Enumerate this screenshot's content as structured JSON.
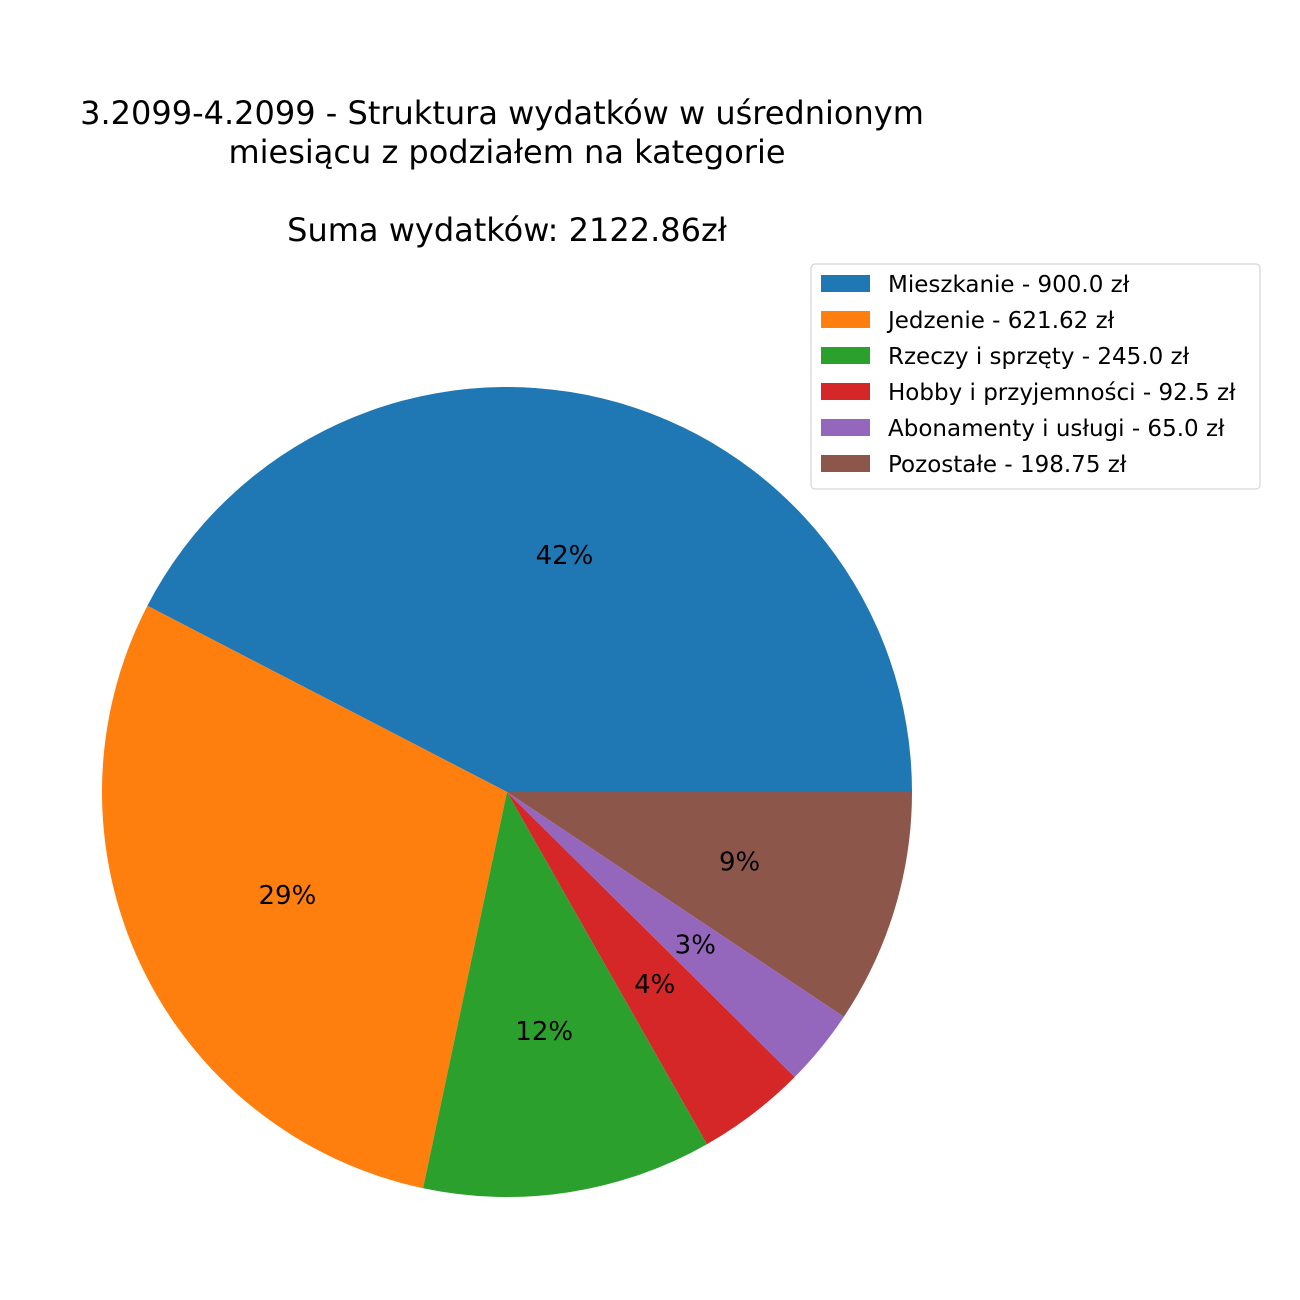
{
  "chart_data": {
    "type": "pie",
    "title_lines": [
      "3.2099-4.2099 - Struktura wydatków w uśrednionym",
      "miesiącu z podziałem na kategorie"
    ],
    "subtitle": "Suma wydatków: 2122.86zł",
    "start_angle": 0,
    "direction": "counterclockwise",
    "legend_position": "top-right",
    "slices": [
      {
        "name": "Mieszkanie",
        "value": 900.0,
        "legend": "Mieszkanie - 900.0 zł",
        "pct_label": "42%",
        "color": "#1f77b4"
      },
      {
        "name": "Jedzenie",
        "value": 621.62,
        "legend": "Jedzenie - 621.62 zł",
        "pct_label": "29%",
        "color": "#ff7f0e"
      },
      {
        "name": "Rzeczy i sprzęty",
        "value": 245.0,
        "legend": "Rzeczy i sprzęty - 245.0 zł",
        "pct_label": "12%",
        "color": "#2ca02c"
      },
      {
        "name": "Hobby i przyjemności",
        "value": 92.5,
        "legend": "Hobby i przyjemności - 92.5 zł",
        "pct_label": "4%",
        "color": "#d62728"
      },
      {
        "name": "Abonamenty i usługi",
        "value": 65.0,
        "legend": "Abonamenty i usługi - 65.0 zł",
        "pct_label": "3%",
        "color": "#9467bd"
      },
      {
        "name": "Pozostałe",
        "value": 198.75,
        "legend": "Pozostałe - 198.75 zł",
        "pct_label": "9%",
        "color": "#8c564b"
      }
    ]
  }
}
